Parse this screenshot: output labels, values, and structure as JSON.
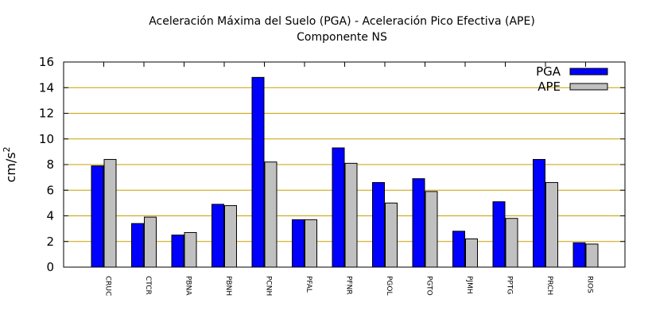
{
  "chart_data": {
    "type": "bar",
    "title": "Aceleración Máxima del Suelo (PGA) -  Aceleración Pico Efectiva (APE)",
    "subtitle": "Componente NS",
    "ylabel": {
      "base": "cm/s",
      "sup": "2"
    },
    "xlabel": "",
    "ylim": [
      0,
      16
    ],
    "yticks": [
      0,
      2,
      4,
      6,
      8,
      10,
      12,
      14,
      16
    ],
    "grid": true,
    "legend_position": "top-right",
    "categories": [
      "CRUC",
      "CTCR",
      "PBNA",
      "PBNH",
      "PCNH",
      "PFAL",
      "PFNR",
      "PGOL",
      "PGTO",
      "PJMH",
      "PPTG",
      "PRCH",
      "RIOS"
    ],
    "series": [
      {
        "name": "PGA",
        "color": "#0000ff",
        "values": [
          7.9,
          3.4,
          2.5,
          4.9,
          14.8,
          3.7,
          9.3,
          6.6,
          6.9,
          2.8,
          5.1,
          8.4,
          1.9
        ]
      },
      {
        "name": "APE",
        "color": "#c0c0c0",
        "values": [
          8.4,
          3.9,
          2.7,
          4.8,
          8.2,
          3.7,
          8.1,
          5.0,
          5.9,
          2.2,
          3.8,
          6.6,
          1.8
        ]
      }
    ],
    "colors": {
      "grid": "#c8a000",
      "axis": "#000000"
    }
  }
}
